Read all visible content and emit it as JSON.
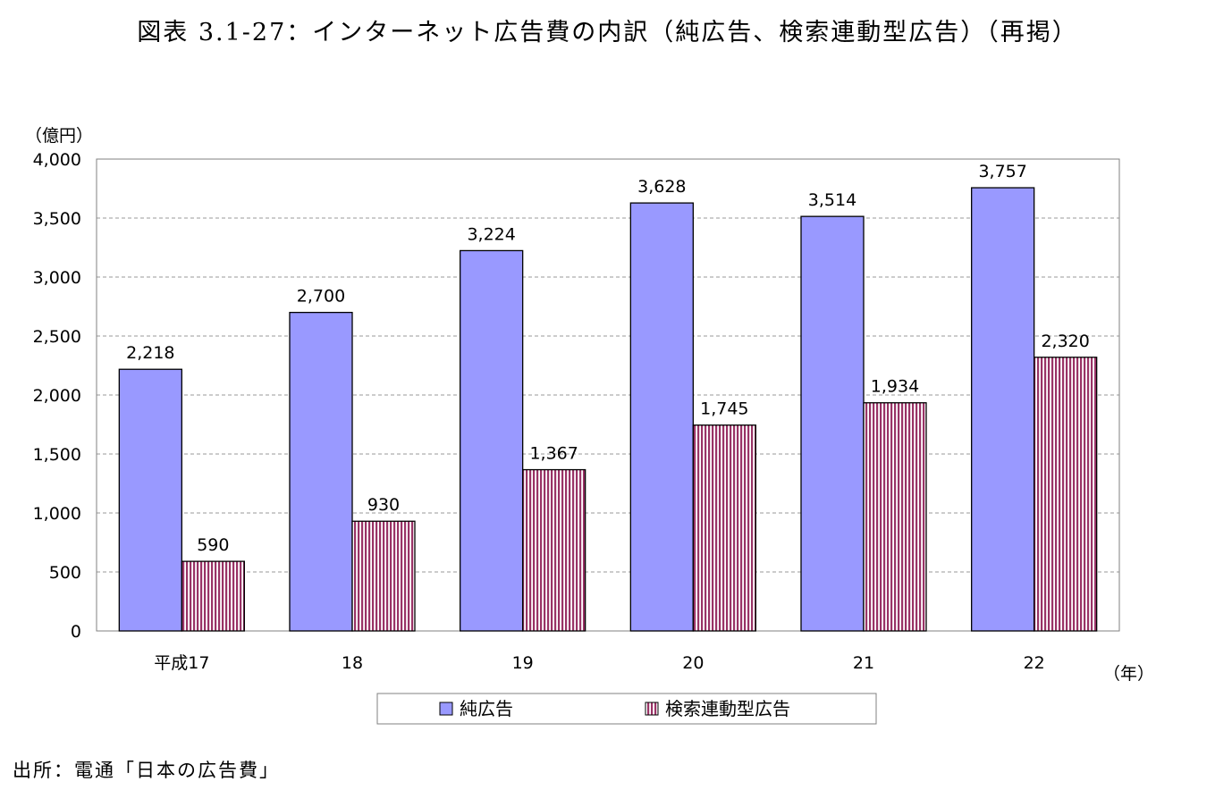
{
  "title": "図表 3.1-27：インターネット広告費の内訳（純広告、検索連動型広告）（再掲）",
  "source": "出所：電通「日本の広告費」",
  "chart_data": {
    "type": "bar",
    "y_unit_label": "（億円）",
    "x_unit_label": "（年）",
    "categories": [
      "平成17",
      "18",
      "19",
      "20",
      "21",
      "22"
    ],
    "ylim": [
      0,
      4000
    ],
    "yticks": [
      0,
      500,
      1000,
      1500,
      2000,
      2500,
      3000,
      3500,
      4000
    ],
    "ytick_labels": [
      "0",
      "500",
      "1,000",
      "1,500",
      "2,000",
      "2,500",
      "3,000",
      "3,500",
      "4,000"
    ],
    "grid": true,
    "legend_position": "bottom",
    "series": [
      {
        "name": "純広告",
        "color": "#9999ff",
        "pattern": "solid",
        "values": [
          2218,
          2700,
          3224,
          3628,
          3514,
          3757
        ],
        "labels": [
          "2,218",
          "2,700",
          "3,224",
          "3,628",
          "3,514",
          "3,757"
        ]
      },
      {
        "name": "検索連動型広告",
        "color": "#993366",
        "pattern": "vertical-stripes",
        "values": [
          590,
          930,
          1367,
          1745,
          1934,
          2320
        ],
        "labels": [
          "590",
          "930",
          "1,367",
          "1,745",
          "1,934",
          "2,320"
        ]
      }
    ]
  }
}
